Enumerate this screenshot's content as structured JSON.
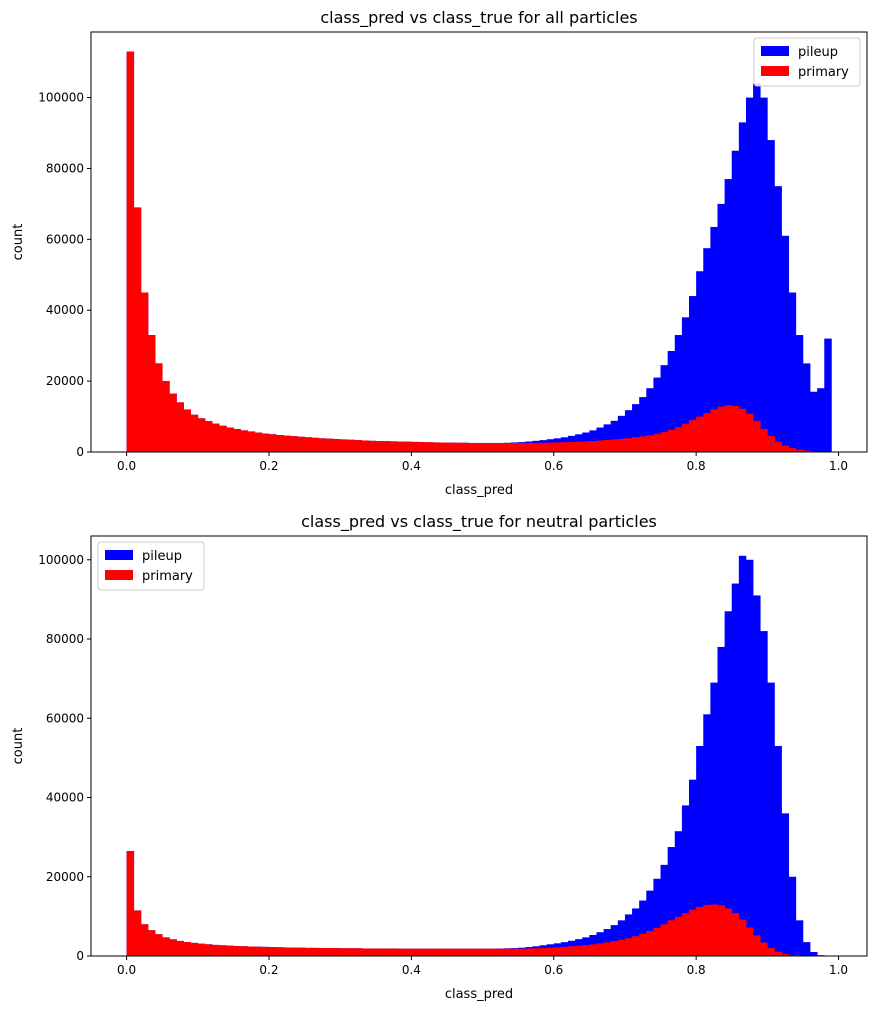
{
  "chart_data": [
    {
      "type": "bar",
      "title": "class_pred vs class_true for all particles",
      "xlabel": "class_pred",
      "ylabel": "count",
      "xlim": [
        -0.05,
        1.04
      ],
      "ylim": [
        0,
        118500
      ],
      "xticks": [
        "0.0",
        "0.2",
        "0.4",
        "0.6",
        "0.8",
        "1.0"
      ],
      "xtick_values": [
        0,
        0.2,
        0.4,
        0.6,
        0.8,
        1.0
      ],
      "yticks": [
        "0",
        "20000",
        "40000",
        "60000",
        "80000",
        "100000"
      ],
      "ytick_values": [
        0,
        20000,
        40000,
        60000,
        80000,
        100000
      ],
      "grid": false,
      "legend_position": "top-right",
      "bin_start": 0,
      "bin_width": 0.01,
      "series": [
        {
          "name": "pileup",
          "color": "#0000ff",
          "values": [
            113000,
            69000,
            45000,
            33000,
            25000,
            20000,
            16500,
            14000,
            12000,
            10500,
            9500,
            8700,
            8000,
            7400,
            6900,
            6500,
            6100,
            5800,
            5500,
            5200,
            5000,
            4800,
            4600,
            4450,
            4300,
            4150,
            4000,
            3850,
            3750,
            3650,
            3550,
            3450,
            3350,
            3250,
            3150,
            3100,
            3050,
            3000,
            2950,
            2900,
            2850,
            2800,
            2750,
            2700,
            2650,
            2650,
            2600,
            2600,
            2550,
            2550,
            2550,
            2550,
            2550,
            2600,
            2700,
            2800,
            2950,
            3150,
            3350,
            3600,
            3850,
            4150,
            4550,
            5000,
            5500,
            6100,
            6900,
            7800,
            8800,
            10200,
            11800,
            13500,
            15500,
            18000,
            21000,
            24500,
            28500,
            33000,
            38000,
            44000,
            51000,
            57500,
            63500,
            70000,
            77000,
            85000,
            93000,
            100000,
            104000,
            100000,
            88000,
            75000,
            61000,
            45000,
            33000,
            25000,
            17000,
            18000,
            32000
          ]
        },
        {
          "name": "primary",
          "color": "#ff0000",
          "values": [
            113000,
            69000,
            45000,
            33000,
            25000,
            20000,
            16500,
            14000,
            12000,
            10500,
            9500,
            8700,
            8000,
            7400,
            6900,
            6500,
            6100,
            5800,
            5500,
            5200,
            5000,
            4800,
            4600,
            4450,
            4300,
            4150,
            4000,
            3850,
            3750,
            3650,
            3550,
            3450,
            3350,
            3250,
            3150,
            3100,
            3050,
            3000,
            2950,
            2900,
            2850,
            2800,
            2750,
            2700,
            2650,
            2650,
            2600,
            2600,
            2550,
            2550,
            2550,
            2550,
            2550,
            2550,
            2550,
            2550,
            2550,
            2600,
            2600,
            2650,
            2700,
            2750,
            2800,
            2900,
            3000,
            3100,
            3250,
            3400,
            3550,
            3700,
            3900,
            4150,
            4400,
            4700,
            5100,
            5600,
            6200,
            7000,
            8000,
            9000,
            10000,
            11000,
            12000,
            12800,
            13200,
            13000,
            12200,
            10800,
            8800,
            6500,
            4500,
            2900,
            1800,
            1100,
            700,
            400,
            200,
            100,
            50
          ]
        }
      ]
    },
    {
      "type": "bar",
      "title": "class_pred vs class_true for neutral particles",
      "xlabel": "class_pred",
      "ylabel": "count",
      "xlim": [
        -0.05,
        1.04
      ],
      "ylim": [
        0,
        106000
      ],
      "xticks": [
        "0.0",
        "0.2",
        "0.4",
        "0.6",
        "0.8",
        "1.0"
      ],
      "xtick_values": [
        0,
        0.2,
        0.4,
        0.6,
        0.8,
        1.0
      ],
      "yticks": [
        "0",
        "20000",
        "40000",
        "60000",
        "80000",
        "100000"
      ],
      "ytick_values": [
        0,
        20000,
        40000,
        60000,
        80000,
        100000
      ],
      "grid": false,
      "legend_position": "top-left",
      "bin_start": 0,
      "bin_width": 0.01,
      "series": [
        {
          "name": "pileup",
          "color": "#0000ff",
          "values": [
            26500,
            11500,
            8000,
            6500,
            5500,
            4700,
            4200,
            3800,
            3500,
            3300,
            3100,
            2950,
            2800,
            2700,
            2600,
            2500,
            2450,
            2400,
            2350,
            2300,
            2250,
            2200,
            2150,
            2100,
            2100,
            2050,
            2050,
            2000,
            2000,
            2000,
            1950,
            1950,
            1950,
            1900,
            1900,
            1900,
            1900,
            1900,
            1850,
            1850,
            1850,
            1850,
            1850,
            1850,
            1850,
            1850,
            1850,
            1850,
            1850,
            1850,
            1850,
            1850,
            1900,
            1950,
            2000,
            2100,
            2250,
            2450,
            2700,
            2950,
            3200,
            3500,
            3850,
            4250,
            4700,
            5300,
            6000,
            6800,
            7800,
            9000,
            10500,
            12000,
            14000,
            16500,
            19500,
            23000,
            27500,
            31500,
            38000,
            44500,
            53000,
            61000,
            69000,
            78000,
            87000,
            94000,
            101000,
            100000,
            91000,
            82000,
            69000,
            53000,
            36000,
            20000,
            9000,
            3500,
            1000,
            200,
            50
          ]
        },
        {
          "name": "primary",
          "color": "#ff0000",
          "values": [
            26500,
            11500,
            8000,
            6500,
            5500,
            4700,
            4200,
            3800,
            3500,
            3300,
            3100,
            2950,
            2800,
            2700,
            2600,
            2500,
            2450,
            2400,
            2350,
            2300,
            2250,
            2200,
            2150,
            2100,
            2100,
            2050,
            2050,
            2000,
            2000,
            2000,
            1950,
            1950,
            1950,
            1900,
            1900,
            1900,
            1900,
            1900,
            1850,
            1850,
            1850,
            1850,
            1850,
            1850,
            1850,
            1850,
            1850,
            1850,
            1850,
            1850,
            1850,
            1850,
            1850,
            1850,
            1850,
            1850,
            1900,
            1950,
            2000,
            2100,
            2200,
            2300,
            2450,
            2600,
            2750,
            2950,
            3200,
            3450,
            3750,
            4100,
            4500,
            5000,
            5600,
            6300,
            7100,
            8000,
            9000,
            9900,
            10800,
            11700,
            12400,
            12900,
            13000,
            12800,
            12000,
            10800,
            9200,
            7200,
            5200,
            3400,
            2000,
            1100,
            500,
            200,
            80,
            30,
            10
          ]
        }
      ]
    }
  ]
}
